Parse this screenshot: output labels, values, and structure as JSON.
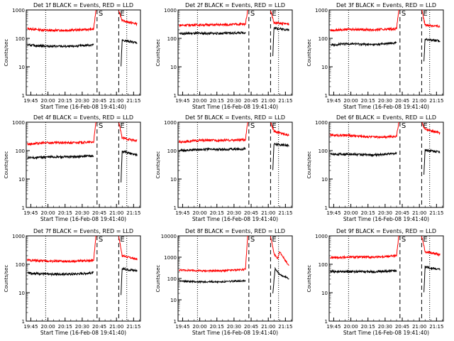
{
  "colors": {
    "events": "#000000",
    "lld": "#ff0000",
    "axis": "#000000",
    "background": "#ffffff"
  },
  "chart_data": [
    {
      "type": "line",
      "title": "Det 1f BLACK = Events, RED = LLD",
      "xlabel": "Start Time (16-Feb-08 19:41:40)",
      "ylabel": "Counts/sec",
      "yscale": "log",
      "ylim": [
        1,
        1000
      ],
      "yticks": [
        "1",
        "10",
        "100",
        "1000"
      ],
      "xticks": [
        "19:45",
        "20:00",
        "20:15",
        "20:30",
        "20:45",
        "21:00",
        "21:15"
      ],
      "markers": {
        "S": "20:43",
        "E": "21:02",
        "dotted": [
          "19:58",
          "21:09"
        ]
      },
      "series": [
        {
          "color": "red",
          "points": [
            [
              "19:42",
              220
            ],
            [
              "20:00",
              190
            ],
            [
              "20:20",
              195
            ],
            [
              "20:40",
              210
            ],
            [
              "20:42",
              1000
            ],
            [
              "21:02",
              1000
            ],
            [
              "21:05",
              420
            ],
            [
              "21:18",
              320
            ]
          ]
        },
        {
          "color": "black",
          "points": [
            [
              "19:42",
              58
            ],
            [
              "20:00",
              53
            ],
            [
              "20:20",
              52
            ],
            [
              "20:40",
              60
            ],
            [
              "21:04",
              10
            ],
            [
              "21:05",
              85
            ],
            [
              "21:18",
              70
            ]
          ]
        }
      ]
    },
    {
      "type": "line",
      "title": "Det 2f BLACK = Events, RED = LLD",
      "xlabel": "Start Time (16-Feb-08 19:41:40)",
      "ylabel": "Counts/sec",
      "yscale": "log",
      "ylim": [
        1,
        1000
      ],
      "yticks": [
        "1",
        "10",
        "100",
        "1000"
      ],
      "xticks": [
        "19:45",
        "20:00",
        "20:15",
        "20:30",
        "20:45",
        "21:00",
        "21:15"
      ],
      "markers": {
        "S": "20:43",
        "E": "21:02",
        "dotted": [
          "19:58",
          "21:09"
        ]
      },
      "series": [
        {
          "color": "red",
          "points": [
            [
              "19:42",
              290
            ],
            [
              "20:00",
              300
            ],
            [
              "20:20",
              300
            ],
            [
              "20:40",
              320
            ],
            [
              "20:42",
              1000
            ],
            [
              "21:02",
              1000
            ],
            [
              "21:05",
              350
            ],
            [
              "21:18",
              320
            ]
          ]
        },
        {
          "color": "black",
          "points": [
            [
              "19:42",
              150
            ],
            [
              "20:00",
              150
            ],
            [
              "20:20",
              150
            ],
            [
              "20:40",
              160
            ],
            [
              "21:04",
              25
            ],
            [
              "21:05",
              230
            ],
            [
              "21:18",
              200
            ]
          ]
        }
      ]
    },
    {
      "type": "line",
      "title": "Det 3f BLACK = Events, RED = LLD",
      "xlabel": "Start Time (16-Feb-08 19:41:40)",
      "ylabel": "Counts/sec",
      "yscale": "log",
      "ylim": [
        1,
        1000
      ],
      "yticks": [
        "1",
        "10",
        "100",
        "1000"
      ],
      "xticks": [
        "19:45",
        "20:00",
        "20:15",
        "20:30",
        "20:45",
        "21:00",
        "21:15"
      ],
      "markers": {
        "S": "20:43",
        "E": "21:02",
        "dotted": [
          "19:58",
          "21:09"
        ]
      },
      "series": [
        {
          "color": "red",
          "points": [
            [
              "19:42",
              190
            ],
            [
              "20:00",
              210
            ],
            [
              "20:20",
              200
            ],
            [
              "20:40",
              220
            ],
            [
              "20:42",
              1000
            ],
            [
              "21:02",
              1000
            ],
            [
              "21:05",
              300
            ],
            [
              "21:18",
              260
            ]
          ]
        },
        {
          "color": "black",
          "points": [
            [
              "19:42",
              60
            ],
            [
              "20:00",
              65
            ],
            [
              "20:20",
              60
            ],
            [
              "20:40",
              70
            ],
            [
              "21:04",
              15
            ],
            [
              "21:05",
              95
            ],
            [
              "21:18",
              80
            ]
          ]
        }
      ]
    },
    {
      "type": "line",
      "title": "Det 4f BLACK = Events, RED = LLD",
      "xlabel": "Start Time (16-Feb-08 19:41:40)",
      "ylabel": "Counts/sec",
      "yscale": "log",
      "ylim": [
        1,
        1000
      ],
      "yticks": [
        "1",
        "10",
        "100",
        "1000"
      ],
      "xticks": [
        "19:45",
        "20:00",
        "20:15",
        "20:30",
        "20:45",
        "21:00",
        "21:15"
      ],
      "markers": {
        "S": "20:43",
        "E": "21:02",
        "dotted": [
          "19:58",
          "21:09"
        ]
      },
      "series": [
        {
          "color": "red",
          "points": [
            [
              "19:42",
              170
            ],
            [
              "20:00",
              190
            ],
            [
              "20:20",
              190
            ],
            [
              "20:40",
              200
            ],
            [
              "20:42",
              1000
            ],
            [
              "21:02",
              1000
            ],
            [
              "21:05",
              280
            ],
            [
              "21:18",
              220
            ]
          ]
        },
        {
          "color": "black",
          "points": [
            [
              "19:42",
              55
            ],
            [
              "20:00",
              60
            ],
            [
              "20:20",
              60
            ],
            [
              "20:40",
              65
            ],
            [
              "21:04",
              8
            ],
            [
              "21:05",
              95
            ],
            [
              "21:18",
              70
            ]
          ]
        }
      ]
    },
    {
      "type": "line",
      "title": "Det 5f BLACK = Events, RED = LLD",
      "xlabel": "Start Time (16-Feb-08 19:41:40)",
      "ylabel": "Counts/sec",
      "yscale": "log",
      "ylim": [
        1,
        1000
      ],
      "yticks": [
        "1",
        "10",
        "100",
        "1000"
      ],
      "xticks": [
        "19:45",
        "20:00",
        "20:15",
        "20:30",
        "20:45",
        "21:00",
        "21:15"
      ],
      "markers": {
        "S": "20:43",
        "E": "21:02",
        "dotted": [
          "19:58",
          "21:09"
        ]
      },
      "series": [
        {
          "color": "red",
          "points": [
            [
              "19:42",
              200
            ],
            [
              "20:00",
              230
            ],
            [
              "20:20",
              230
            ],
            [
              "20:40",
              240
            ],
            [
              "20:42",
              1000
            ],
            [
              "21:02",
              1000
            ],
            [
              "21:05",
              480
            ],
            [
              "21:18",
              350
            ]
          ]
        },
        {
          "color": "black",
          "points": [
            [
              "19:42",
              100
            ],
            [
              "20:00",
              110
            ],
            [
              "20:20",
              110
            ],
            [
              "20:40",
              115
            ],
            [
              "21:04",
              20
            ],
            [
              "21:05",
              170
            ],
            [
              "21:18",
              150
            ]
          ]
        }
      ]
    },
    {
      "type": "line",
      "title": "Det 6f BLACK = Events, RED = LLD",
      "xlabel": "Start Time (16-Feb-08 19:41:40)",
      "ylabel": "Counts/sec",
      "yscale": "log",
      "ylim": [
        1,
        1000
      ],
      "yticks": [
        "1",
        "10",
        "100",
        "1000"
      ],
      "xticks": [
        "19:45",
        "20:00",
        "20:15",
        "20:30",
        "20:45",
        "21:00",
        "21:15"
      ],
      "markers": {
        "S": "20:43",
        "E": "21:02",
        "dotted": [
          "19:58",
          "21:09"
        ]
      },
      "series": [
        {
          "color": "red",
          "points": [
            [
              "19:42",
              350
            ],
            [
              "20:00",
              340
            ],
            [
              "20:20",
              300
            ],
            [
              "20:40",
              320
            ],
            [
              "20:42",
              1000
            ],
            [
              "21:02",
              1000
            ],
            [
              "21:05",
              560
            ],
            [
              "21:18",
              420
            ]
          ]
        },
        {
          "color": "black",
          "points": [
            [
              "19:42",
              75
            ],
            [
              "20:00",
              75
            ],
            [
              "20:20",
              70
            ],
            [
              "20:40",
              80
            ],
            [
              "21:04",
              15
            ],
            [
              "21:05",
              105
            ],
            [
              "21:18",
              90
            ]
          ]
        }
      ]
    },
    {
      "type": "line",
      "title": "Det 7f BLACK = Events, RED = LLD",
      "xlabel": "Start Time (16-Feb-08 19:41:40)",
      "ylabel": "Counts/sec",
      "yscale": "log",
      "ylim": [
        1,
        1000
      ],
      "yticks": [
        "1",
        "10",
        "100",
        "1000"
      ],
      "xticks": [
        "19:45",
        "20:00",
        "20:15",
        "20:30",
        "20:45",
        "21:00",
        "21:15"
      ],
      "markers": {
        "S": "20:43",
        "E": "21:02",
        "dotted": [
          "19:58",
          "21:09"
        ]
      },
      "series": [
        {
          "color": "red",
          "points": [
            [
              "19:42",
              140
            ],
            [
              "20:00",
              130
            ],
            [
              "20:20",
              125
            ],
            [
              "20:40",
              140
            ],
            [
              "20:42",
              1000
            ],
            [
              "21:02",
              1000
            ],
            [
              "21:05",
              200
            ],
            [
              "21:18",
              150
            ]
          ]
        },
        {
          "color": "black",
          "points": [
            [
              "19:42",
              50
            ],
            [
              "20:00",
              45
            ],
            [
              "20:20",
              45
            ],
            [
              "20:40",
              50
            ],
            [
              "21:04",
              8
            ],
            [
              "21:05",
              70
            ],
            [
              "21:18",
              60
            ]
          ]
        }
      ]
    },
    {
      "type": "line",
      "title": "Det 8f BLACK = Events, RED = LLD",
      "xlabel": "Start Time (16-Feb-08 19:41:40)",
      "ylabel": "Counts/sec",
      "yscale": "log",
      "ylim": [
        1,
        10000
      ],
      "yticks": [
        "1",
        "10",
        "100",
        "1000",
        "10000"
      ],
      "xticks": [
        "19:45",
        "20:00",
        "20:15",
        "20:30",
        "20:45",
        "21:00",
        "21:15"
      ],
      "markers": {
        "S": "20:43",
        "E": "21:02",
        "dotted": [
          "19:58",
          "21:09"
        ]
      },
      "series": [
        {
          "color": "red",
          "points": [
            [
              "19:42",
              250
            ],
            [
              "20:00",
              230
            ],
            [
              "20:20",
              230
            ],
            [
              "20:40",
              270
            ],
            [
              "20:42",
              10000
            ],
            [
              "21:02",
              10000
            ],
            [
              "21:05",
              1500
            ],
            [
              "21:08",
              800
            ],
            [
              "21:10",
              1800
            ],
            [
              "21:18",
              400
            ]
          ]
        },
        {
          "color": "black",
          "points": [
            [
              "19:42",
              75
            ],
            [
              "20:00",
              70
            ],
            [
              "20:20",
              70
            ],
            [
              "20:40",
              80
            ],
            [
              "21:04",
              20
            ],
            [
              "21:06",
              300
            ],
            [
              "21:10",
              150
            ],
            [
              "21:18",
              100
            ]
          ]
        }
      ]
    },
    {
      "type": "line",
      "title": "Det 9f BLACK = Events, RED = LLD",
      "xlabel": "Start Time (16-Feb-08 19:41:40)",
      "ylabel": "Counts/sec",
      "yscale": "log",
      "ylim": [
        1,
        1000
      ],
      "yticks": [
        "1",
        "10",
        "100",
        "1000"
      ],
      "xticks": [
        "19:45",
        "20:00",
        "20:15",
        "20:30",
        "20:45",
        "21:00",
        "21:15"
      ],
      "markers": {
        "S": "20:43",
        "E": "21:02",
        "dotted": [
          "19:58",
          "21:09"
        ]
      },
      "series": [
        {
          "color": "red",
          "points": [
            [
              "19:42",
              170
            ],
            [
              "20:00",
              180
            ],
            [
              "20:20",
              180
            ],
            [
              "20:40",
              200
            ],
            [
              "20:42",
              1000
            ],
            [
              "21:02",
              1000
            ],
            [
              "21:05",
              280
            ],
            [
              "21:18",
              220
            ]
          ]
        },
        {
          "color": "black",
          "points": [
            [
              "19:42",
              55
            ],
            [
              "20:00",
              55
            ],
            [
              "20:20",
              55
            ],
            [
              "20:40",
              60
            ],
            [
              "21:04",
              10
            ],
            [
              "21:05",
              80
            ],
            [
              "21:18",
              65
            ]
          ]
        }
      ]
    }
  ]
}
